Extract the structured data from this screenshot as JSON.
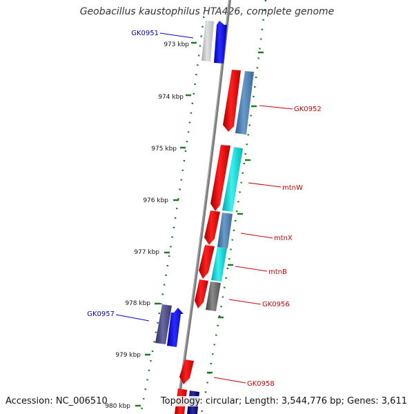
{
  "title": "Geobacillus kaustophilus HTA426, complete genome",
  "footer": {
    "accession": "Accession: NC_006510",
    "summary": "Topology: circular; Length: 3,544,776 bp; Genes: 3,611"
  },
  "colors": {
    "backbone": "#808080",
    "tick": "#1e7a1e",
    "forward_label": "#0000cc",
    "reverse_label": "#cc0000"
  },
  "ruler": [
    {
      "label": "973 kbp",
      "kbp": 973
    },
    {
      "label": "974 kbp",
      "kbp": 974
    },
    {
      "label": "975 kbp",
      "kbp": 975
    },
    {
      "label": "976 kbp",
      "kbp": 976
    },
    {
      "label": "977 kbp",
      "kbp": 977
    },
    {
      "label": "978 kbp",
      "kbp": 978
    },
    {
      "label": "979 kbp",
      "kbp": 979
    },
    {
      "label": "980 kbp",
      "kbp": 980
    }
  ],
  "genes": [
    {
      "label": "GK0951",
      "strand": "forward"
    },
    {
      "label": "GK0952",
      "strand": "reverse"
    },
    {
      "label": "mtnW",
      "strand": "reverse"
    },
    {
      "label": "mtnX",
      "strand": "reverse"
    },
    {
      "label": "mtnB",
      "strand": "reverse"
    },
    {
      "label": "GK0956",
      "strand": "reverse"
    },
    {
      "label": "GK0957",
      "strand": "forward"
    },
    {
      "label": "GK0958",
      "strand": "reverse"
    }
  ]
}
